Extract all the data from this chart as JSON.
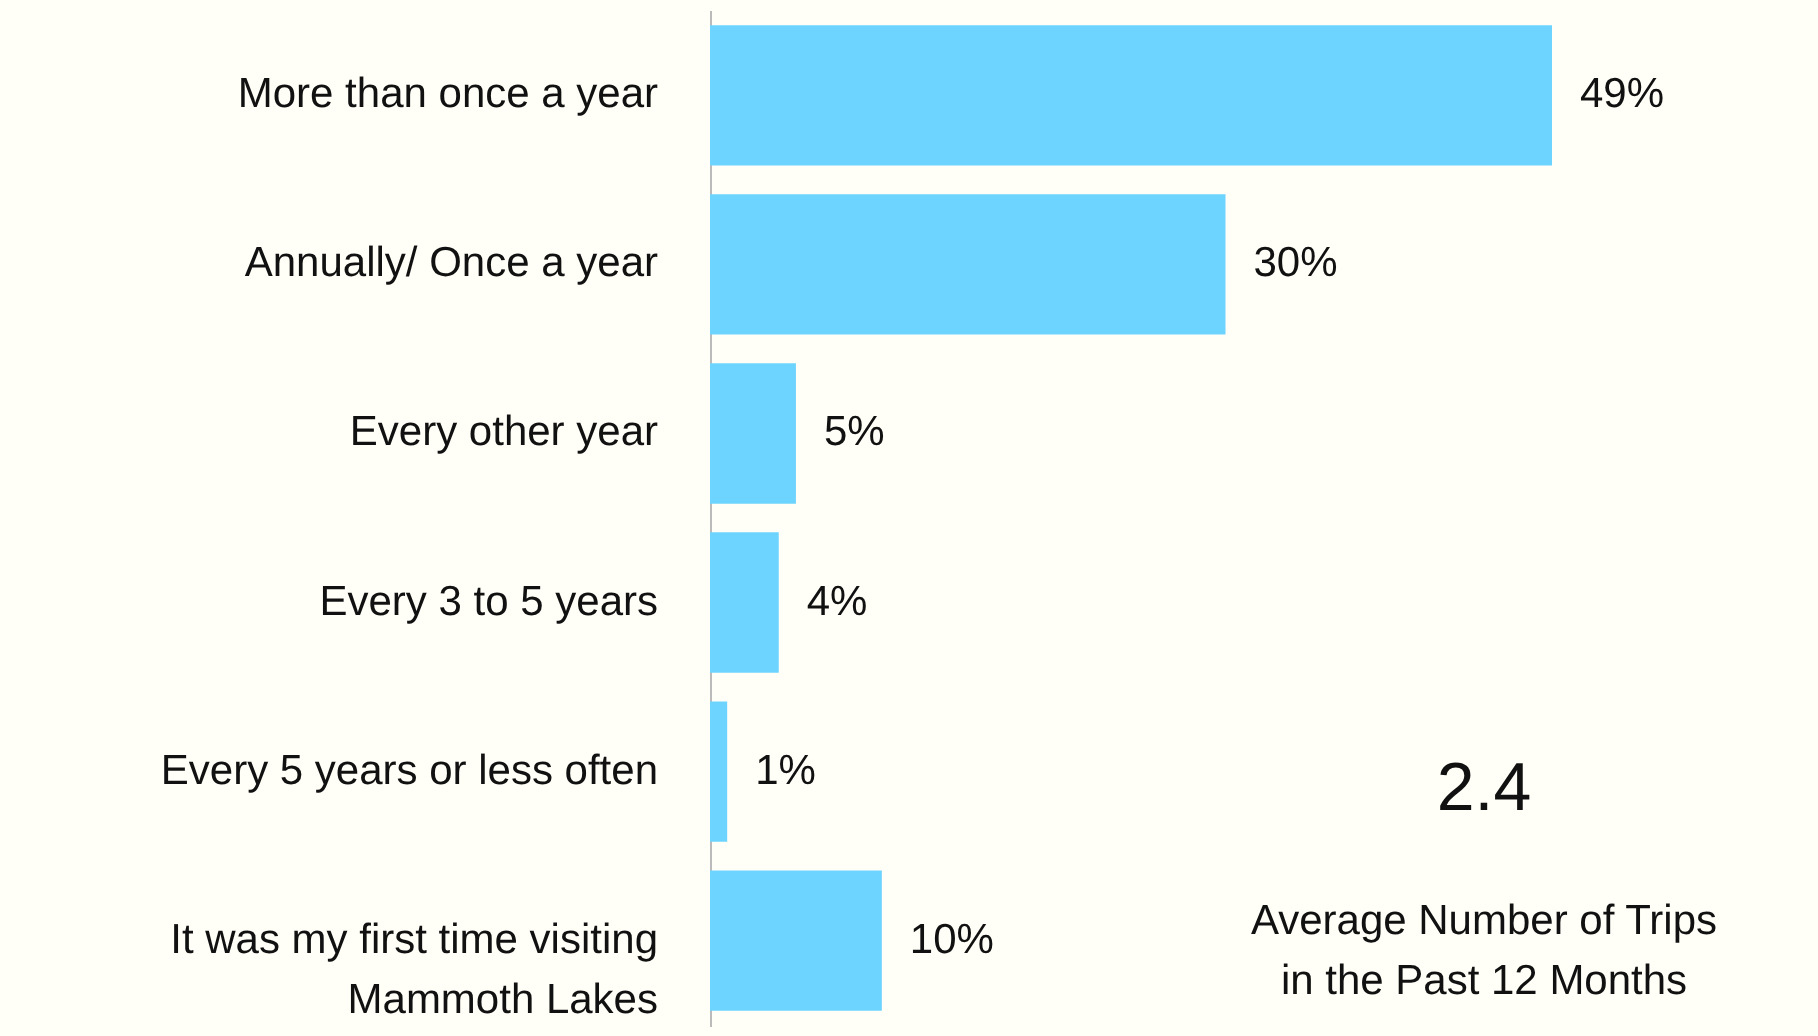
{
  "chart_data": {
    "type": "bar",
    "orientation": "horizontal",
    "categories": [
      "More than once a year",
      "Annually/ Once a year",
      "Every other year",
      "Every 3 to 5 years",
      "Every 5 years or less often",
      "It was my first time visiting Mammoth Lakes"
    ],
    "values": [
      49,
      30,
      5,
      4,
      1,
      10
    ],
    "value_labels": [
      "49%",
      "30%",
      "5%",
      "4%",
      "1%",
      "10%"
    ],
    "color": "#6dd3ff",
    "tick_labels": "y",
    "annotations": [
      "2.4",
      "Average Number of Trips in the Past 12 Months"
    ]
  }
}
